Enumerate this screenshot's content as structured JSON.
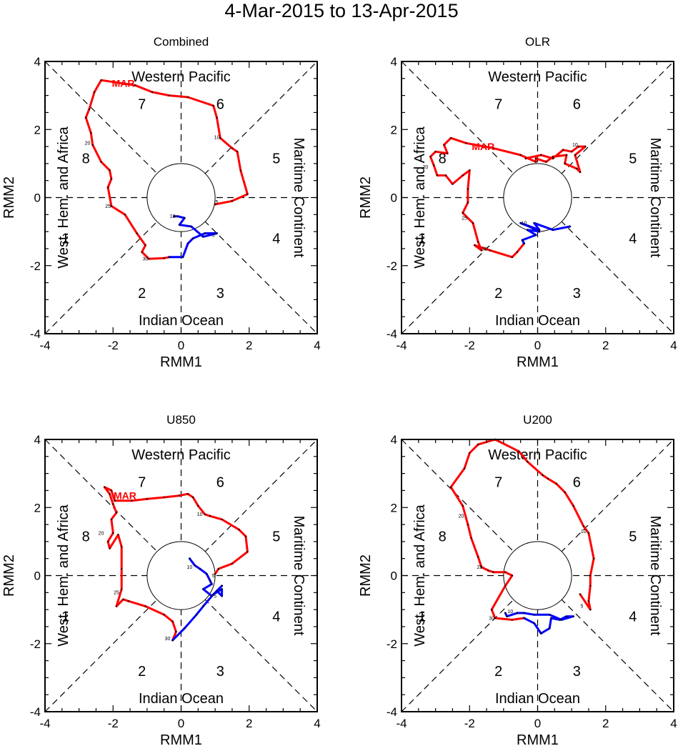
{
  "title": "4-Mar-2015 to 13-Apr-2015",
  "colors": {
    "march": "#ff0000",
    "april": "#0000ff",
    "axes": "#000000"
  },
  "chart_data": [
    {
      "type": "line",
      "title": "Combined",
      "xlabel": "RMM1",
      "ylabel": "RMM2",
      "xlim": [
        -4,
        4
      ],
      "ylim": [
        -4,
        4
      ],
      "ticks": [
        "-4",
        "-2",
        "0",
        "2",
        "4"
      ],
      "regions": {
        "top": "Western Pacific",
        "bottom": "Indian Ocean",
        "left": "West. Hem. and Africa",
        "right": "Maritime Continent"
      },
      "phases": [
        "1",
        "2",
        "3",
        "4",
        "5",
        "6",
        "7",
        "8"
      ],
      "month_label": {
        "text": "MAR",
        "x": -1.7,
        "y": 3.25
      },
      "day_labels": [
        {
          "text": "5",
          "x": 1.05,
          "y": -0.18
        },
        {
          "text": "10",
          "x": 1.05,
          "y": 1.72
        },
        {
          "text": "20",
          "x": -2.75,
          "y": 1.55
        },
        {
          "text": "25",
          "x": -2.15,
          "y": -0.3
        },
        {
          "text": "30",
          "x": -1.05,
          "y": -1.85
        },
        {
          "text": "5",
          "x": 0.95,
          "y": -1.15
        },
        {
          "text": "10",
          "x": -0.25,
          "y": -0.6
        }
      ],
      "series": [
        {
          "name": "March",
          "color": "#ff0000",
          "points": [
            [
              1.0,
              -0.2
            ],
            [
              1.5,
              -0.1
            ],
            [
              1.95,
              0.1
            ],
            [
              1.75,
              0.8
            ],
            [
              1.65,
              1.35
            ],
            [
              1.5,
              1.45
            ],
            [
              1.15,
              1.75
            ],
            [
              1.05,
              2.35
            ],
            [
              0.95,
              2.7
            ],
            [
              0.2,
              2.95
            ],
            [
              -0.35,
              3.0
            ],
            [
              -0.85,
              3.1
            ],
            [
              -1.35,
              3.3
            ],
            [
              -2.35,
              3.45
            ],
            [
              -2.55,
              3.1
            ],
            [
              -2.7,
              2.6
            ],
            [
              -2.8,
              2.35
            ],
            [
              -2.65,
              1.9
            ],
            [
              -2.6,
              1.55
            ],
            [
              -2.35,
              1.05
            ],
            [
              -2.1,
              0.8
            ],
            [
              -2.05,
              0.55
            ],
            [
              -2.15,
              0.3
            ],
            [
              -2.05,
              -0.25
            ],
            [
              -1.65,
              -0.5
            ],
            [
              -1.3,
              -1.05
            ],
            [
              -1.05,
              -1.4
            ],
            [
              -1.15,
              -1.6
            ],
            [
              -0.95,
              -1.8
            ],
            [
              -0.5,
              -1.78
            ],
            [
              -0.35,
              -1.75
            ]
          ]
        },
        {
          "name": "April",
          "color": "#0000ff",
          "points": [
            [
              -0.35,
              -1.75
            ],
            [
              0.05,
              -1.75
            ],
            [
              0.2,
              -1.35
            ],
            [
              0.35,
              -1.2
            ],
            [
              0.7,
              -1.05
            ],
            [
              1.05,
              -1.05
            ],
            [
              0.65,
              -1.15
            ],
            [
              0.3,
              -0.85
            ],
            [
              -0.05,
              -0.8
            ],
            [
              0.1,
              -0.6
            ],
            [
              -0.1,
              -0.55
            ],
            [
              -0.2,
              -0.55
            ]
          ]
        }
      ]
    },
    {
      "type": "line",
      "title": "OLR",
      "xlabel": "RMM1",
      "ylabel": "RMM2",
      "xlim": [
        -4,
        4
      ],
      "ylim": [
        -4,
        4
      ],
      "ticks": [
        "-4",
        "-2",
        "0",
        "2",
        "4"
      ],
      "regions": {
        "top": "Western Pacific",
        "bottom": "Indian Ocean",
        "left": "West. Hem. and Africa",
        "right": "Maritime Continent"
      },
      "phases": [
        "1",
        "2",
        "3",
        "4",
        "5",
        "6",
        "7",
        "8"
      ],
      "month_label": {
        "text": "MAR",
        "x": -1.6,
        "y": 1.4
      },
      "day_labels": [
        {
          "text": "10",
          "x": 1.1,
          "y": 1.5
        },
        {
          "text": "20",
          "x": -3.3,
          "y": 0.85
        },
        {
          "text": "25",
          "x": -2.15,
          "y": -0.65
        },
        {
          "text": "30",
          "x": -1.55,
          "y": -1.55
        },
        {
          "text": "10",
          "x": -0.4,
          "y": -0.8
        }
      ],
      "series": [
        {
          "name": "March",
          "color": "#ff0000",
          "points": [
            [
              -0.35,
              1.15
            ],
            [
              0.1,
              1.25
            ],
            [
              0.45,
              1.15
            ],
            [
              0.75,
              1.4
            ],
            [
              1.0,
              1.35
            ],
            [
              1.2,
              1.5
            ],
            [
              1.4,
              1.5
            ],
            [
              1.1,
              1.25
            ],
            [
              1.25,
              0.75
            ],
            [
              1.15,
              0.85
            ],
            [
              0.8,
              1.0
            ],
            [
              0.85,
              1.25
            ],
            [
              0.45,
              1.2
            ],
            [
              0.25,
              1.05
            ],
            [
              -0.05,
              1.15
            ],
            [
              -0.05,
              1.05
            ],
            [
              -0.5,
              1.25
            ],
            [
              -1.3,
              1.45
            ],
            [
              -2.1,
              1.6
            ],
            [
              -2.55,
              1.75
            ],
            [
              -2.75,
              1.55
            ],
            [
              -2.65,
              1.3
            ],
            [
              -3.0,
              1.35
            ],
            [
              -3.15,
              1.2
            ],
            [
              -3.05,
              0.95
            ],
            [
              -2.95,
              0.65
            ],
            [
              -2.7,
              0.65
            ],
            [
              -2.5,
              0.4
            ],
            [
              -2.2,
              0.65
            ],
            [
              -2.0,
              0.8
            ],
            [
              -2.05,
              0.25
            ],
            [
              -2.05,
              -0.15
            ],
            [
              -2.2,
              -0.45
            ],
            [
              -1.9,
              -0.75
            ],
            [
              -1.75,
              -1.3
            ],
            [
              -1.65,
              -1.55
            ],
            [
              -1.85,
              -1.4
            ],
            [
              -1.4,
              -1.55
            ],
            [
              -0.75,
              -1.75
            ],
            [
              -0.6,
              -1.6
            ],
            [
              -0.4,
              -1.35
            ]
          ]
        },
        {
          "name": "April",
          "color": "#0000ff",
          "points": [
            [
              -0.4,
              -1.35
            ],
            [
              -0.45,
              -1.25
            ],
            [
              -0.05,
              -1.1
            ],
            [
              -0.3,
              -0.95
            ],
            [
              0.05,
              -1.0
            ],
            [
              -0.25,
              -0.85
            ],
            [
              -0.5,
              -0.75
            ],
            [
              0.05,
              -0.95
            ],
            [
              -0.1,
              -0.75
            ],
            [
              0.45,
              -0.95
            ],
            [
              0.95,
              -0.85
            ]
          ]
        }
      ]
    },
    {
      "type": "line",
      "title": "U850",
      "xlabel": "RMM1",
      "ylabel": "RMM2",
      "xlim": [
        -4,
        4
      ],
      "ylim": [
        -4,
        4
      ],
      "ticks": [
        "-4",
        "-2",
        "0",
        "2",
        "4"
      ],
      "regions": {
        "top": "Western Pacific",
        "bottom": "Indian Ocean",
        "left": "West. Hem. and Africa",
        "right": "Maritime Continent"
      },
      "phases": [
        "1",
        "2",
        "3",
        "4",
        "5",
        "6",
        "7",
        "8"
      ],
      "month_label": {
        "text": "MAR",
        "x": -1.65,
        "y": 2.25
      },
      "day_labels": [
        {
          "text": "10",
          "x": 0.55,
          "y": 1.75
        },
        {
          "text": "20",
          "x": -2.35,
          "y": 1.2
        },
        {
          "text": "25",
          "x": -1.9,
          "y": -0.55
        },
        {
          "text": "30",
          "x": -0.4,
          "y": -1.9
        },
        {
          "text": "5",
          "x": 0.95,
          "y": -0.05
        },
        {
          "text": "5",
          "x": 1.0,
          "y": -0.65
        },
        {
          "text": "10",
          "x": 0.25,
          "y": 0.2
        }
      ],
      "series": [
        {
          "name": "March",
          "color": "#ff0000",
          "points": [
            [
              1.0,
              0.05
            ],
            [
              1.1,
              0.2
            ],
            [
              1.5,
              0.35
            ],
            [
              1.95,
              0.7
            ],
            [
              1.9,
              1.15
            ],
            [
              1.7,
              1.35
            ],
            [
              1.2,
              1.65
            ],
            [
              0.85,
              1.75
            ],
            [
              0.7,
              1.8
            ],
            [
              0.5,
              2.05
            ],
            [
              0.35,
              2.3
            ],
            [
              0.2,
              2.4
            ],
            [
              -0.05,
              2.35
            ],
            [
              -0.5,
              2.3
            ],
            [
              -1.0,
              2.25
            ],
            [
              -1.45,
              2.2
            ],
            [
              -1.95,
              2.2
            ],
            [
              -2.05,
              2.5
            ],
            [
              -2.25,
              2.6
            ],
            [
              -2.1,
              2.4
            ],
            [
              -2.0,
              2.1
            ],
            [
              -1.9,
              1.85
            ],
            [
              -2.05,
              1.65
            ],
            [
              -2.0,
              1.25
            ],
            [
              -2.15,
              1.0
            ],
            [
              -2.1,
              0.8
            ],
            [
              -1.85,
              1.2
            ],
            [
              -1.75,
              0.85
            ],
            [
              -1.75,
              0.2
            ],
            [
              -1.75,
              -0.4
            ],
            [
              -1.9,
              -0.9
            ],
            [
              -1.7,
              -0.7
            ],
            [
              -1.55,
              -0.75
            ],
            [
              -1.05,
              -0.9
            ],
            [
              -0.5,
              -1.15
            ],
            [
              -0.25,
              -1.35
            ],
            [
              -0.15,
              -1.65
            ],
            [
              -0.25,
              -1.9
            ]
          ]
        },
        {
          "name": "April",
          "color": "#0000ff",
          "points": [
            [
              -0.25,
              -1.9
            ],
            [
              0.1,
              -1.55
            ],
            [
              0.45,
              -1.15
            ],
            [
              0.65,
              -0.9
            ],
            [
              0.95,
              -0.55
            ],
            [
              1.2,
              -0.4
            ],
            [
              1.2,
              -0.6
            ],
            [
              1.05,
              -0.45
            ],
            [
              1.2,
              -0.3
            ],
            [
              0.9,
              -0.6
            ],
            [
              0.65,
              -0.4
            ],
            [
              0.9,
              -0.25
            ],
            [
              0.85,
              -0.15
            ],
            [
              0.75,
              0.05
            ],
            [
              0.55,
              0.2
            ],
            [
              0.4,
              0.3
            ],
            [
              0.25,
              0.5
            ]
          ]
        }
      ]
    },
    {
      "type": "line",
      "title": "U200",
      "xlabel": "RMM1",
      "ylabel": "RMM2",
      "xlim": [
        -4,
        4
      ],
      "ylim": [
        -4,
        4
      ],
      "ticks": [
        "-4",
        "-2",
        "0",
        "2",
        "4"
      ],
      "regions": {
        "top": "Western Pacific",
        "bottom": "Indian Ocean",
        "left": "West. Hem. and Africa",
        "right": "Maritime Continent"
      },
      "phases": [
        "1",
        "2",
        "3",
        "4",
        "5",
        "6",
        "7",
        "8"
      ],
      "month_label": null,
      "day_labels": [
        {
          "text": "5",
          "x": 1.3,
          "y": -0.95
        },
        {
          "text": "10",
          "x": 1.35,
          "y": 1.25
        },
        {
          "text": "20",
          "x": -2.25,
          "y": 1.7
        },
        {
          "text": "25",
          "x": -1.7,
          "y": 0.2
        },
        {
          "text": "30",
          "x": -1.35,
          "y": -1.3
        },
        {
          "text": "10",
          "x": -0.8,
          "y": -1.1
        }
      ],
      "series": [
        {
          "name": "March",
          "color": "#ff0000",
          "points": [
            [
              1.25,
              -0.55
            ],
            [
              1.55,
              -1.0
            ],
            [
              1.5,
              -0.75
            ],
            [
              1.55,
              -0.3
            ],
            [
              1.55,
              0.0
            ],
            [
              1.65,
              0.5
            ],
            [
              1.5,
              1.25
            ],
            [
              1.35,
              1.45
            ],
            [
              1.05,
              2.05
            ],
            [
              0.8,
              2.45
            ],
            [
              0.55,
              2.7
            ],
            [
              0.3,
              2.85
            ],
            [
              0.15,
              2.95
            ],
            [
              -0.3,
              3.35
            ],
            [
              -0.55,
              3.65
            ],
            [
              -1.25,
              4.0
            ],
            [
              -1.75,
              3.85
            ],
            [
              -2.0,
              3.6
            ],
            [
              -2.15,
              3.15
            ],
            [
              -2.55,
              2.6
            ],
            [
              -2.2,
              2.05
            ],
            [
              -2.05,
              1.5
            ],
            [
              -1.95,
              1.1
            ],
            [
              -1.75,
              0.55
            ],
            [
              -1.65,
              0.25
            ],
            [
              -1.45,
              0.15
            ],
            [
              -1.3,
              0.1
            ],
            [
              -0.95,
              0.1
            ],
            [
              -0.75,
              0.0
            ],
            [
              -0.95,
              -0.3
            ],
            [
              -1.35,
              -1.0
            ],
            [
              -1.25,
              -1.25
            ],
            [
              -0.75,
              -1.3
            ],
            [
              -0.4,
              -1.25
            ]
          ]
        },
        {
          "name": "April",
          "color": "#0000ff",
          "points": [
            [
              -0.4,
              -1.25
            ],
            [
              -0.1,
              -1.4
            ],
            [
              0.1,
              -1.7
            ],
            [
              0.35,
              -1.55
            ],
            [
              0.4,
              -1.25
            ],
            [
              0.65,
              -1.3
            ],
            [
              0.85,
              -1.2
            ],
            [
              1.05,
              -1.2
            ],
            [
              0.7,
              -1.3
            ],
            [
              0.35,
              -1.15
            ],
            [
              -0.1,
              -1.15
            ],
            [
              -0.4,
              -1.1
            ],
            [
              -0.6,
              -1.1
            ],
            [
              -0.9,
              -1.2
            ],
            [
              -0.95,
              -1.1
            ]
          ]
        }
      ]
    }
  ]
}
